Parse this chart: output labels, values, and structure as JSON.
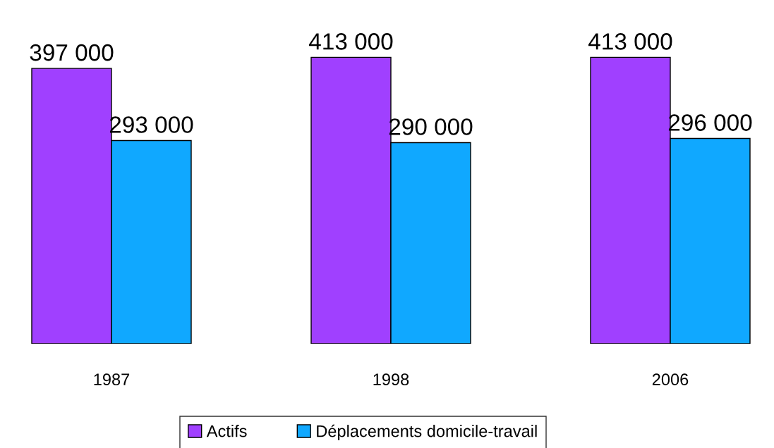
{
  "chart_data": {
    "type": "bar",
    "categories": [
      "1987",
      "1998",
      "2006"
    ],
    "series": [
      {
        "name": "Actifs",
        "color": "#a040ff",
        "values": [
          397000,
          413000,
          413000
        ],
        "value_labels": [
          "397 000",
          "413 000",
          "413 000"
        ]
      },
      {
        "name": "Déplacements domicile-travail",
        "color": "#10a8ff",
        "values": [
          293000,
          290000,
          296000
        ],
        "value_labels": [
          "293 000",
          "290 000",
          "296 000"
        ]
      }
    ],
    "legend": "bottom",
    "grid": false
  }
}
